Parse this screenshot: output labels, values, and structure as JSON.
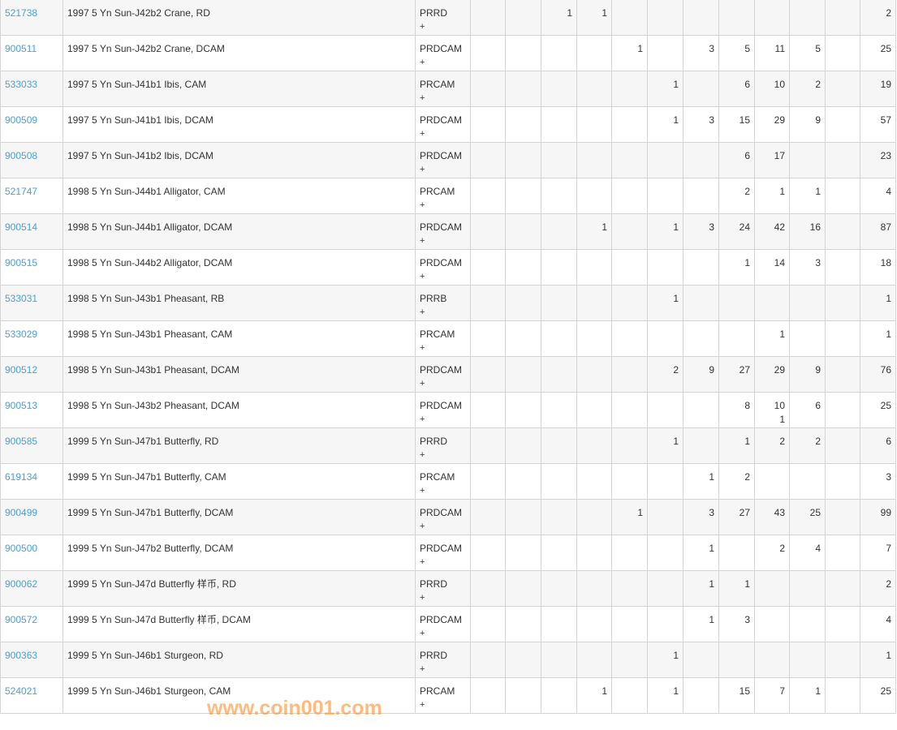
{
  "rows": [
    {
      "id": "521738",
      "desc": "1997 5 Yn Sun-J42b2 Crane, RD",
      "grade": "PRRD",
      "plus": "+",
      "counts": [
        "",
        "",
        "1",
        "1",
        "",
        "",
        "",
        "",
        "",
        "",
        ""
      ],
      "total": "2"
    },
    {
      "id": "900511",
      "desc": "1997 5 Yn Sun-J42b2 Crane, DCAM",
      "grade": "PRDCAM",
      "plus": "+",
      "counts": [
        "",
        "",
        "",
        "",
        "1",
        "",
        "3",
        "5",
        "11",
        "5",
        ""
      ],
      "total": "25"
    },
    {
      "id": "533033",
      "desc": "1997 5 Yn Sun-J41b1 Ibis, CAM",
      "grade": "PRCAM",
      "plus": "+",
      "counts": [
        "",
        "",
        "",
        "",
        "",
        "1",
        "",
        "6",
        "10",
        "2",
        ""
      ],
      "total": "19"
    },
    {
      "id": "900509",
      "desc": "1997 5 Yn Sun-J41b1 Ibis, DCAM",
      "grade": "PRDCAM",
      "plus": "+",
      "counts": [
        "",
        "",
        "",
        "",
        "",
        "1",
        "3",
        "15",
        "29",
        "9",
        ""
      ],
      "total": "57"
    },
    {
      "id": "900508",
      "desc": "1997 5 Yn Sun-J41b2 Ibis, DCAM",
      "grade": "PRDCAM",
      "plus": "+",
      "counts": [
        "",
        "",
        "",
        "",
        "",
        "",
        "",
        "6",
        "17",
        "",
        ""
      ],
      "total": "23"
    },
    {
      "id": "521747",
      "desc": "1998 5 Yn Sun-J44b1 Alligator, CAM",
      "grade": "PRCAM",
      "plus": "+",
      "counts": [
        "",
        "",
        "",
        "",
        "",
        "",
        "",
        "2",
        "1",
        "1",
        ""
      ],
      "total": "4"
    },
    {
      "id": "900514",
      "desc": "1998 5 Yn Sun-J44b1 Alligator, DCAM",
      "grade": "PRDCAM",
      "plus": "+",
      "counts": [
        "",
        "",
        "",
        "1",
        "",
        "1",
        "3",
        "24",
        "42",
        "16",
        ""
      ],
      "total": "87"
    },
    {
      "id": "900515",
      "desc": "1998 5 Yn Sun-J44b2 Alligator, DCAM",
      "grade": "PRDCAM",
      "plus": "+",
      "counts": [
        "",
        "",
        "",
        "",
        "",
        "",
        "",
        "1",
        "14",
        "3",
        ""
      ],
      "total": "18"
    },
    {
      "id": "533031",
      "desc": "1998 5 Yn Sun-J43b1 Pheasant, RB",
      "grade": "PRRB",
      "plus": "+",
      "counts": [
        "",
        "",
        "",
        "",
        "",
        "1",
        "",
        "",
        "",
        "",
        ""
      ],
      "total": "1"
    },
    {
      "id": "533029",
      "desc": "1998 5 Yn Sun-J43b1 Pheasant, CAM",
      "grade": "PRCAM",
      "plus": "+",
      "counts": [
        "",
        "",
        "",
        "",
        "",
        "",
        "",
        "",
        "1",
        "",
        ""
      ],
      "total": "1"
    },
    {
      "id": "900512",
      "desc": "1998 5 Yn Sun-J43b1 Pheasant, DCAM",
      "grade": "PRDCAM",
      "plus": "+",
      "counts": [
        "",
        "",
        "",
        "",
        "",
        "2",
        "9",
        "27",
        "29",
        "9",
        ""
      ],
      "total": "76"
    },
    {
      "id": "900513",
      "desc": "1998 5 Yn Sun-J43b2 Pheasant, DCAM",
      "grade": "PRDCAM",
      "plus": "+",
      "counts": [
        "",
        "",
        "",
        "",
        "",
        "",
        "",
        "8",
        "10 1",
        "6",
        ""
      ],
      "total": "25"
    },
    {
      "id": "900585",
      "desc": "1999 5 Yn Sun-J47b1 Butterfly, RD",
      "grade": "PRRD",
      "plus": "+",
      "counts": [
        "",
        "",
        "",
        "",
        "",
        "1",
        "",
        "1",
        "2",
        "2",
        ""
      ],
      "total": "6"
    },
    {
      "id": "619134",
      "desc": "1999 5 Yn Sun-J47b1 Butterfly, CAM",
      "grade": "PRCAM",
      "plus": "+",
      "counts": [
        "",
        "",
        "",
        "",
        "",
        "",
        "1",
        "2",
        "",
        "",
        ""
      ],
      "total": "3"
    },
    {
      "id": "900499",
      "desc": "1999 5 Yn Sun-J47b1 Butterfly, DCAM",
      "grade": "PRDCAM",
      "plus": "+",
      "counts": [
        "",
        "",
        "",
        "",
        "1",
        "",
        "3",
        "27",
        "43",
        "25",
        ""
      ],
      "total": "99"
    },
    {
      "id": "900500",
      "desc": "1999 5 Yn Sun-J47b2 Butterfly, DCAM",
      "grade": "PRDCAM",
      "plus": "+",
      "counts": [
        "",
        "",
        "",
        "",
        "",
        "",
        "1",
        "",
        "2",
        "4",
        ""
      ],
      "total": "7"
    },
    {
      "id": "900062",
      "desc": "1999 5 Yn Sun-J47d Butterfly 样币, RD",
      "grade": "PRRD",
      "plus": "+",
      "counts": [
        "",
        "",
        "",
        "",
        "",
        "",
        "1",
        "1",
        "",
        "",
        ""
      ],
      "total": "2"
    },
    {
      "id": "900572",
      "desc": "1999 5 Yn Sun-J47d Butterfly 样币, DCAM",
      "grade": "PRDCAM",
      "plus": "+",
      "counts": [
        "",
        "",
        "",
        "",
        "",
        "",
        "1",
        "3",
        "",
        "",
        ""
      ],
      "total": "4"
    },
    {
      "id": "900363",
      "desc": "1999 5 Yn Sun-J46b1 Sturgeon, RD",
      "grade": "PRRD",
      "plus": "+",
      "counts": [
        "",
        "",
        "",
        "",
        "",
        "1",
        "",
        "",
        "",
        "",
        ""
      ],
      "total": "1"
    },
    {
      "id": "524021",
      "desc": "1999 5 Yn Sun-J46b1 Sturgeon, CAM",
      "grade": "PRCAM",
      "plus": "+",
      "counts": [
        "",
        "",
        "",
        "1",
        "",
        "1",
        "",
        "15",
        "7",
        "1",
        ""
      ],
      "total": "25"
    }
  ],
  "watermark": "www.coin001.com",
  "colors": {
    "link": "#4b9fd6",
    "watermark": "#ff8c28"
  }
}
